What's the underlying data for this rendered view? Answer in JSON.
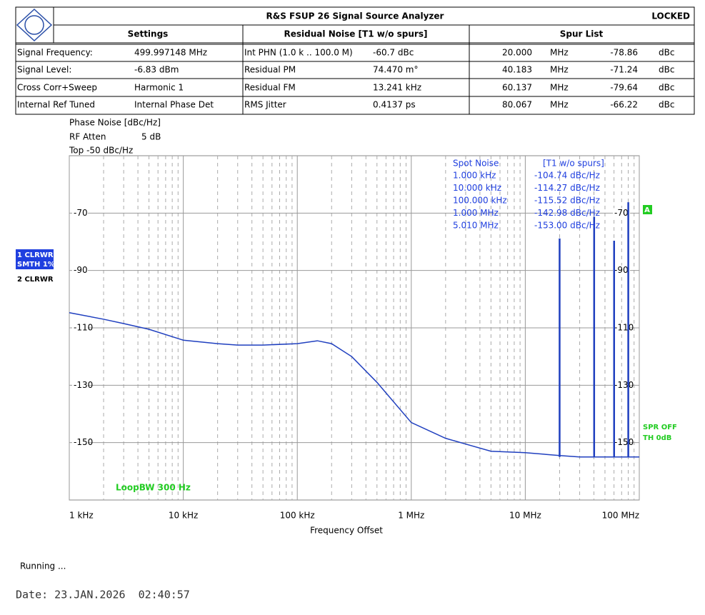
{
  "header": {
    "title": "R&S FSUP 26 Signal Source Analyzer",
    "status": "LOCKED"
  },
  "table": {
    "headers": [
      "Settings",
      "Residual Noise [T1 w/o spurs]",
      "Spur List"
    ],
    "rows": [
      [
        "Signal Frequency:",
        "499.997148 MHz",
        "Int PHN (1.0 k .. 100.0 M)",
        "-60.7 dBc"
      ],
      [
        "Signal Level:",
        "-6.83 dBm",
        "Residual PM",
        "74.470 m°"
      ],
      [
        "Cross Corr+Sweep",
        "Harmonic 1",
        "Residual FM",
        "13.241 kHz"
      ],
      [
        "Internal Ref Tuned",
        "Internal Phase Det",
        "RMS Jitter",
        "0.4137 ps"
      ]
    ]
  },
  "spur_list": {
    "rows": [
      [
        "20.000",
        "MHz",
        "-78.86",
        "dBc"
      ],
      [
        "40.183",
        "MHz",
        "-71.24",
        "dBc"
      ],
      [
        "60.137",
        "MHz",
        "-79.64",
        "dBc"
      ],
      [
        "80.067",
        "MHz",
        "-66.22",
        "dBc"
      ]
    ]
  },
  "chart_data": {
    "type": "line",
    "annotations": [
      "Phase Noise [dBc/Hz]",
      "RF Atten",
      "5 dB",
      "Top -50 dBc/Hz",
      "LoopBW 300 Hz",
      "SPR OFF",
      "TH 0dB",
      "A"
    ],
    "traces": [
      "1 CLRWR",
      "SMTH 1%",
      "2 CLRWR"
    ],
    "spot_noise": {
      "header": [
        "Spot Noise",
        "[T1 w/o spurs]"
      ],
      "rows": [
        [
          "1.000 kHz",
          "-104.74 dBc/Hz"
        ],
        [
          "10.000 kHz",
          "-114.27 dBc/Hz"
        ],
        [
          "100.000 kHz",
          "-115.52 dBc/Hz"
        ],
        [
          "1.000 MHz",
          "-142.98 dBc/Hz"
        ],
        [
          "5.010 MHz",
          "-153.00 dBc/Hz"
        ]
      ]
    },
    "x_label": "Frequency Offset",
    "x": [
      1000,
      2000,
      3000,
      5000,
      10000,
      20000,
      30000,
      50000,
      100000,
      150000,
      200000,
      300000,
      500000,
      1000000,
      2000000,
      3000000,
      5000000,
      10000000,
      20000000,
      30000000,
      50000000,
      100000000
    ],
    "series": [
      {
        "color": "#1f3fbf",
        "values": [
          -104.7,
          -107,
          -108.5,
          -110.5,
          -114.3,
          -115.5,
          -116,
          -116,
          -115.5,
          -114.5,
          -115.5,
          -120,
          -129,
          -143,
          -148.5,
          -150.5,
          -153,
          -153.5,
          -154.5,
          -155,
          -155,
          -155
        ]
      }
    ],
    "spurs": {
      "color": "#1f3fbf",
      "x": [
        20000000,
        40183000,
        60137000,
        80067000
      ],
      "values": [
        -78.86,
        -71.24,
        -79.64,
        -66.22
      ]
    },
    "xlim": [
      1000,
      100000000
    ],
    "xticks": [
      {
        "value": 1000,
        "label": "1 kHz"
      },
      {
        "value": 10000,
        "label": "10 kHz"
      },
      {
        "value": 100000,
        "label": "100 kHz"
      },
      {
        "value": 1000000,
        "label": "1 MHz"
      },
      {
        "value": 10000000,
        "label": "10 MHz"
      },
      {
        "value": 100000000,
        "label": "100 MHz"
      }
    ],
    "ylim": [
      -170,
      -50
    ],
    "yticks": [
      -70,
      -90,
      -110,
      -130,
      -150
    ],
    "log_x": true,
    "grid": true
  },
  "footer": {
    "status": "Running ...",
    "date": "Date: 23.JAN.2026  02:40:57"
  }
}
